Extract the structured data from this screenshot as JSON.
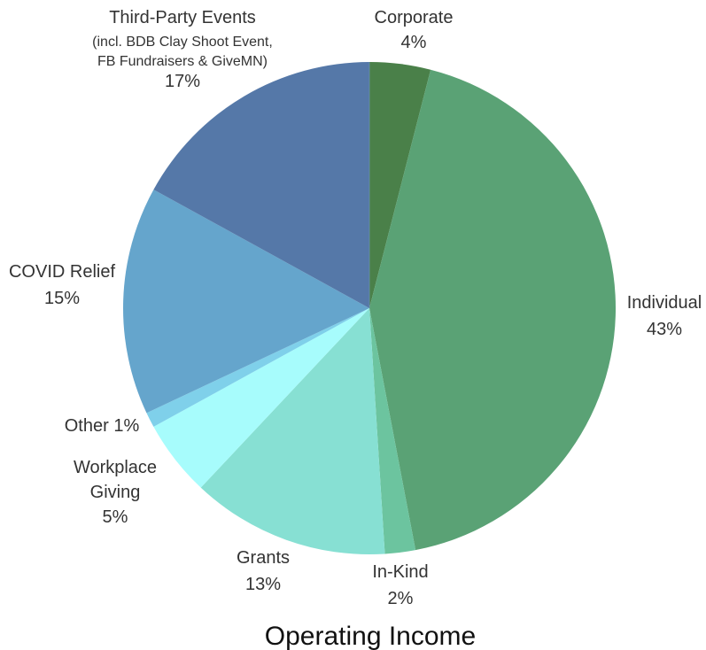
{
  "chart_data": {
    "type": "pie",
    "title": "Operating Income",
    "slices": [
      {
        "name": "Corporate",
        "value": 4,
        "label_lines": [
          "Corporate"
        ],
        "pct_label": "4%",
        "color": "#4a8049"
      },
      {
        "name": "Individual",
        "value": 43,
        "label_lines": [
          "Individual"
        ],
        "pct_label": "43%",
        "color": "#5aa275"
      },
      {
        "name": "In-Kind",
        "value": 2,
        "label_lines": [
          "In-Kind"
        ],
        "pct_label": "2%",
        "color": "#6cc49f"
      },
      {
        "name": "Grants",
        "value": 13,
        "label_lines": [
          "Grants"
        ],
        "pct_label": "13%",
        "color": "#87e0d3"
      },
      {
        "name": "Workplace Giving",
        "value": 5,
        "label_lines": [
          "Workplace",
          "Giving"
        ],
        "pct_label": "5%",
        "color": "#a7fcfc"
      },
      {
        "name": "Other",
        "value": 1,
        "label_lines": [
          "Other 1%"
        ],
        "pct_label": "",
        "color": "#7fd0ea"
      },
      {
        "name": "COVID Relief",
        "value": 15,
        "label_lines": [
          "COVID Relief"
        ],
        "pct_label": "15%",
        "color": "#65a5cc"
      },
      {
        "name": "Third-Party Events",
        "value": 17,
        "label_lines": [
          "Third-Party Events",
          "(incl. BDB Clay Shoot Event,",
          "FB Fundraisers & GiveMN)"
        ],
        "pct_label": "17%",
        "color": "#5578a8"
      }
    ]
  }
}
